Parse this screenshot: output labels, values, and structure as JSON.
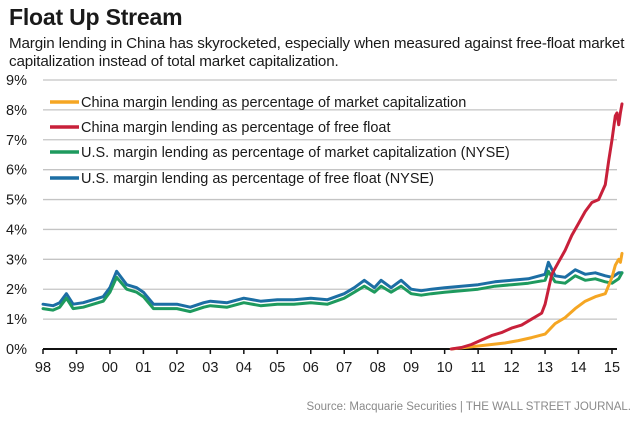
{
  "header": {
    "title": "Float Up Stream",
    "subtitle": "Margin lending in China has skyrocketed, especially when measured against free-float market capitalization instead of total market capitalization."
  },
  "footer": {
    "source": "Source: Macquarie Securities  |  THE WALL STREET JOURNAL."
  },
  "chart_data": {
    "type": "line",
    "title": "Float Up Stream",
    "xlabel": "",
    "ylabel": "",
    "xlim": [
      1998,
      2015.35
    ],
    "ylim": [
      0,
      9
    ],
    "grid": true,
    "legend_position": "top-left",
    "y_ticks": [
      "0%",
      "1%",
      "2%",
      "3%",
      "4%",
      "5%",
      "6%",
      "7%",
      "8%",
      "9%"
    ],
    "x_ticks": [
      "98",
      "99",
      "00",
      "01",
      "02",
      "03",
      "04",
      "05",
      "06",
      "07",
      "08",
      "09",
      "10",
      "11",
      "12",
      "13",
      "14",
      "15"
    ],
    "series": [
      {
        "name": "China margin lending as percentage of market capitalization",
        "color": "#f5a623",
        "x": [
          2010.2,
          2010.6,
          2011.0,
          2011.4,
          2011.8,
          2012.2,
          2012.6,
          2013.0,
          2013.3,
          2013.6,
          2013.9,
          2014.2,
          2014.5,
          2014.8,
          2015.0,
          2015.1,
          2015.2,
          2015.25,
          2015.3
        ],
        "values": [
          0.0,
          0.05,
          0.1,
          0.15,
          0.2,
          0.28,
          0.38,
          0.5,
          0.85,
          1.05,
          1.35,
          1.6,
          1.75,
          1.85,
          2.4,
          2.8,
          3.0,
          2.9,
          3.2
        ]
      },
      {
        "name": "China margin lending as percentage of free float",
        "color": "#c8203a",
        "x": [
          2010.2,
          2010.5,
          2010.8,
          2011.1,
          2011.4,
          2011.7,
          2012.0,
          2012.3,
          2012.6,
          2012.9,
          2013.0,
          2013.2,
          2013.4,
          2013.6,
          2013.8,
          2014.0,
          2014.2,
          2014.4,
          2014.6,
          2014.8,
          2014.9,
          2015.0,
          2015.1,
          2015.15,
          2015.2,
          2015.25,
          2015.3
        ],
        "values": [
          0.0,
          0.05,
          0.15,
          0.3,
          0.45,
          0.55,
          0.7,
          0.8,
          1.0,
          1.2,
          1.5,
          2.5,
          2.9,
          3.3,
          3.8,
          4.2,
          4.6,
          4.9,
          5.0,
          5.5,
          6.3,
          7.0,
          7.8,
          7.9,
          7.5,
          7.9,
          8.2
        ]
      },
      {
        "name": "U.S. margin lending  as percentage of market capitalization (NYSE)",
        "color": "#1e9a5e",
        "x": [
          1998.0,
          1998.3,
          1998.5,
          1998.7,
          1998.9,
          1999.2,
          1999.5,
          1999.8,
          2000.0,
          2000.2,
          2000.5,
          2000.8,
          2001.0,
          2001.3,
          2001.6,
          2002.0,
          2002.4,
          2002.8,
          2003.0,
          2003.5,
          2004.0,
          2004.5,
          2005.0,
          2005.5,
          2006.0,
          2006.5,
          2007.0,
          2007.3,
          2007.6,
          2007.9,
          2008.1,
          2008.4,
          2008.7,
          2009.0,
          2009.3,
          2009.6,
          2010.0,
          2010.5,
          2011.0,
          2011.5,
          2012.0,
          2012.5,
          2013.0,
          2013.1,
          2013.3,
          2013.6,
          2013.9,
          2014.2,
          2014.5,
          2014.8,
          2015.0,
          2015.2,
          2015.3
        ],
        "values": [
          1.35,
          1.3,
          1.4,
          1.7,
          1.35,
          1.4,
          1.5,
          1.6,
          1.9,
          2.4,
          2.0,
          1.9,
          1.75,
          1.35,
          1.35,
          1.35,
          1.25,
          1.4,
          1.45,
          1.4,
          1.55,
          1.45,
          1.5,
          1.5,
          1.55,
          1.5,
          1.7,
          1.9,
          2.1,
          1.9,
          2.1,
          1.9,
          2.1,
          1.85,
          1.8,
          1.85,
          1.9,
          1.95,
          2.0,
          2.1,
          2.15,
          2.2,
          2.3,
          2.6,
          2.25,
          2.2,
          2.45,
          2.3,
          2.35,
          2.25,
          2.2,
          2.35,
          2.55
        ]
      },
      {
        "name": "U.S. margin lending as percentage of free float (NYSE)",
        "color": "#1c6ea4",
        "x": [
          1998.0,
          1998.3,
          1998.5,
          1998.7,
          1998.9,
          1999.2,
          1999.5,
          1999.8,
          2000.0,
          2000.2,
          2000.5,
          2000.8,
          2001.0,
          2001.3,
          2001.6,
          2002.0,
          2002.4,
          2002.8,
          2003.0,
          2003.5,
          2004.0,
          2004.5,
          2005.0,
          2005.5,
          2006.0,
          2006.5,
          2007.0,
          2007.3,
          2007.6,
          2007.9,
          2008.1,
          2008.4,
          2008.7,
          2009.0,
          2009.3,
          2009.6,
          2010.0,
          2010.5,
          2011.0,
          2011.5,
          2012.0,
          2012.5,
          2013.0,
          2013.1,
          2013.3,
          2013.6,
          2013.9,
          2014.2,
          2014.5,
          2014.8,
          2015.0,
          2015.2,
          2015.3
        ],
        "values": [
          1.5,
          1.45,
          1.55,
          1.85,
          1.5,
          1.55,
          1.65,
          1.75,
          2.05,
          2.6,
          2.15,
          2.05,
          1.9,
          1.5,
          1.5,
          1.5,
          1.4,
          1.55,
          1.6,
          1.55,
          1.7,
          1.6,
          1.65,
          1.65,
          1.7,
          1.65,
          1.85,
          2.05,
          2.3,
          2.05,
          2.3,
          2.05,
          2.3,
          2.0,
          1.95,
          2.0,
          2.05,
          2.1,
          2.15,
          2.25,
          2.3,
          2.35,
          2.5,
          2.9,
          2.45,
          2.4,
          2.65,
          2.5,
          2.55,
          2.45,
          2.4,
          2.55,
          2.55
        ]
      }
    ]
  }
}
